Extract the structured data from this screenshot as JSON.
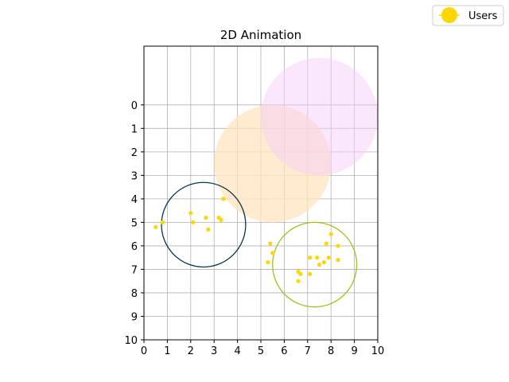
{
  "chart_data": {
    "type": "scatter",
    "title": "2D Animation",
    "xlabel": "",
    "ylabel": "",
    "xlim": [
      0,
      10
    ],
    "ylim": [
      10,
      -2.5
    ],
    "y_inverted": true,
    "x_ticks": [
      0,
      1,
      2,
      3,
      4,
      5,
      6,
      7,
      8,
      9,
      10
    ],
    "y_ticks": [
      0,
      1,
      2,
      3,
      4,
      5,
      6,
      7,
      8,
      9,
      10
    ],
    "grid": true,
    "legend_position": "top-right",
    "series": [
      {
        "name": "Users",
        "color": "#FFD700",
        "points": [
          [
            0.5,
            5.2
          ],
          [
            0.8,
            5.0
          ],
          [
            2.0,
            4.6
          ],
          [
            2.1,
            5.0
          ],
          [
            2.65,
            4.8
          ],
          [
            2.75,
            5.3
          ],
          [
            3.2,
            4.8
          ],
          [
            3.3,
            4.9
          ],
          [
            3.4,
            4.0
          ],
          [
            5.4,
            5.9
          ],
          [
            5.5,
            6.3
          ],
          [
            5.3,
            6.7
          ],
          [
            6.6,
            7.1
          ],
          [
            6.7,
            7.2
          ],
          [
            6.6,
            7.5
          ],
          [
            7.1,
            7.2
          ],
          [
            7.1,
            6.5
          ],
          [
            7.4,
            6.5
          ],
          [
            7.5,
            6.8
          ],
          [
            7.7,
            6.7
          ],
          [
            7.8,
            5.9
          ],
          [
            7.9,
            6.5
          ],
          [
            8.0,
            5.5
          ],
          [
            8.3,
            6.0
          ],
          [
            8.3,
            6.6
          ]
        ]
      }
    ],
    "circles": [
      {
        "name": "cluster-1",
        "cx": 2.55,
        "cy": 5.1,
        "r": 1.8,
        "fill": "none",
        "stroke": "#0d3349"
      },
      {
        "name": "cluster-2",
        "cx": 7.3,
        "cy": 6.8,
        "r": 1.8,
        "fill": "none",
        "stroke": "#a0c020"
      },
      {
        "name": "area-orange",
        "cx": 5.5,
        "cy": 2.5,
        "r": 2.5,
        "fill": "#FFE4C0",
        "stroke": "none",
        "opacity": 0.75
      },
      {
        "name": "area-pink",
        "cx": 7.5,
        "cy": 0.5,
        "r": 2.5,
        "fill": "#F5D0F8",
        "stroke": "none",
        "opacity": 0.5
      }
    ]
  }
}
